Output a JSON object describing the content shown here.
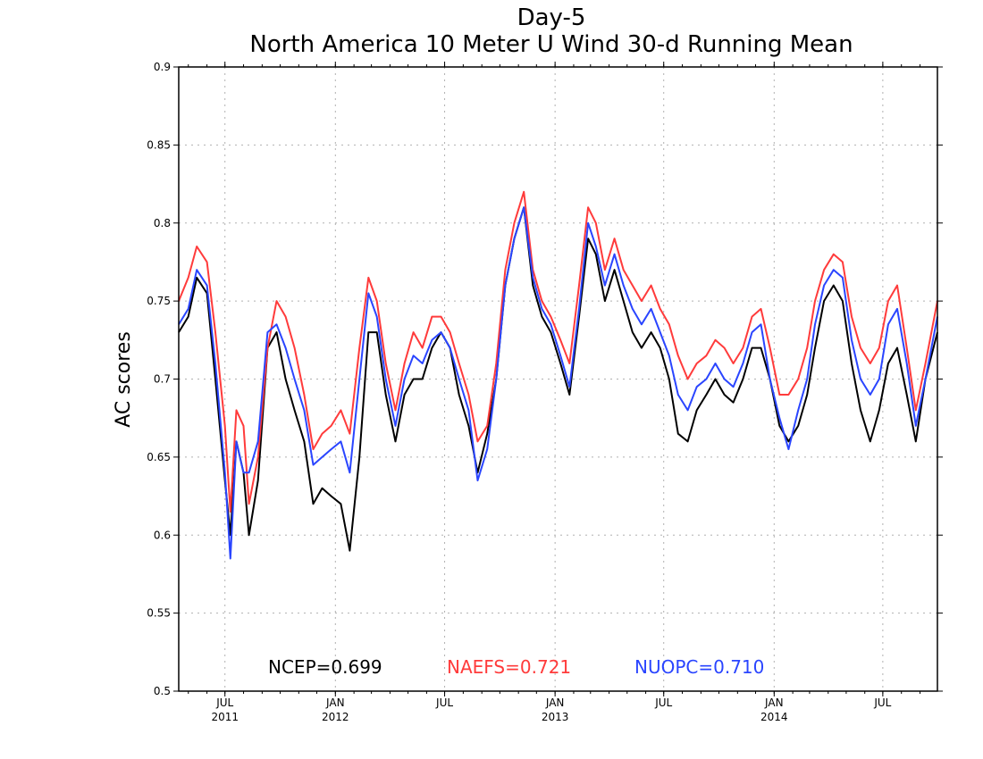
{
  "chart_data": {
    "type": "line",
    "title": "Day-5",
    "subtitle": "North America 10 Meter U Wind 30-d Running Mean",
    "ylabel": "AC scores",
    "xlabel": "",
    "ylim": [
      0.5,
      0.9
    ],
    "yticks": [
      0.5,
      0.55,
      0.6,
      0.65,
      0.7,
      0.75,
      0.8,
      0.85,
      0.9
    ],
    "ytick_labels": [
      "0.5",
      "0.55",
      "0.6",
      "0.65",
      "0.7",
      "0.75",
      "0.8",
      "0.85",
      "0.9"
    ],
    "xlim": [
      "2011-04-15",
      "2014-09-30"
    ],
    "xticks": [
      {
        "date": "2011-07-01",
        "label": "JUL",
        "year": "2011"
      },
      {
        "date": "2012-01-01",
        "label": "JAN",
        "year": "2012"
      },
      {
        "date": "2012-07-01",
        "label": "JUL",
        "year": ""
      },
      {
        "date": "2013-01-01",
        "label": "JAN",
        "year": "2013"
      },
      {
        "date": "2013-07-01",
        "label": "JUL",
        "year": ""
      },
      {
        "date": "2014-01-01",
        "label": "JAN",
        "year": "2014"
      },
      {
        "date": "2014-07-01",
        "label": "JUL",
        "year": ""
      }
    ],
    "grid": true,
    "legend_placement": "bottom",
    "series": [
      {
        "name": "NCEP",
        "legend_label": "NCEP=0.699",
        "color": "#000000",
        "points": [
          [
            "2011-04-15",
            0.73
          ],
          [
            "2011-05-01",
            0.74
          ],
          [
            "2011-05-15",
            0.765
          ],
          [
            "2011-06-01",
            0.755
          ],
          [
            "2011-06-15",
            0.7
          ],
          [
            "2011-07-01",
            0.635
          ],
          [
            "2011-07-10",
            0.6
          ],
          [
            "2011-07-20",
            0.66
          ],
          [
            "2011-08-01",
            0.64
          ],
          [
            "2011-08-10",
            0.6
          ],
          [
            "2011-08-25",
            0.635
          ],
          [
            "2011-09-10",
            0.72
          ],
          [
            "2011-09-25",
            0.73
          ],
          [
            "2011-10-10",
            0.7
          ],
          [
            "2011-10-25",
            0.68
          ],
          [
            "2011-11-10",
            0.66
          ],
          [
            "2011-11-25",
            0.62
          ],
          [
            "2011-12-10",
            0.63
          ],
          [
            "2011-12-25",
            0.625
          ],
          [
            "2012-01-10",
            0.62
          ],
          [
            "2012-01-25",
            0.59
          ],
          [
            "2012-02-10",
            0.65
          ],
          [
            "2012-02-25",
            0.73
          ],
          [
            "2012-03-10",
            0.73
          ],
          [
            "2012-03-25",
            0.69
          ],
          [
            "2012-04-10",
            0.66
          ],
          [
            "2012-04-25",
            0.69
          ],
          [
            "2012-05-10",
            0.7
          ],
          [
            "2012-05-25",
            0.7
          ],
          [
            "2012-06-10",
            0.72
          ],
          [
            "2012-06-25",
            0.73
          ],
          [
            "2012-07-10",
            0.72
          ],
          [
            "2012-07-25",
            0.69
          ],
          [
            "2012-08-10",
            0.67
          ],
          [
            "2012-08-25",
            0.64
          ],
          [
            "2012-09-10",
            0.665
          ],
          [
            "2012-09-25",
            0.7
          ],
          [
            "2012-10-10",
            0.76
          ],
          [
            "2012-10-25",
            0.79
          ],
          [
            "2012-11-10",
            0.81
          ],
          [
            "2012-11-25",
            0.76
          ],
          [
            "2012-12-10",
            0.74
          ],
          [
            "2012-12-25",
            0.73
          ],
          [
            "2013-01-10",
            0.71
          ],
          [
            "2013-01-25",
            0.69
          ],
          [
            "2013-02-10",
            0.74
          ],
          [
            "2013-02-25",
            0.79
          ],
          [
            "2013-03-10",
            0.78
          ],
          [
            "2013-03-25",
            0.75
          ],
          [
            "2013-04-10",
            0.77
          ],
          [
            "2013-04-25",
            0.75
          ],
          [
            "2013-05-10",
            0.73
          ],
          [
            "2013-05-25",
            0.72
          ],
          [
            "2013-06-10",
            0.73
          ],
          [
            "2013-06-25",
            0.72
          ],
          [
            "2013-07-10",
            0.7
          ],
          [
            "2013-07-25",
            0.665
          ],
          [
            "2013-08-10",
            0.66
          ],
          [
            "2013-08-25",
            0.68
          ],
          [
            "2013-09-10",
            0.69
          ],
          [
            "2013-09-25",
            0.7
          ],
          [
            "2013-10-10",
            0.69
          ],
          [
            "2013-10-25",
            0.685
          ],
          [
            "2013-11-10",
            0.7
          ],
          [
            "2013-11-25",
            0.72
          ],
          [
            "2013-12-10",
            0.72
          ],
          [
            "2013-12-25",
            0.7
          ],
          [
            "2014-01-10",
            0.67
          ],
          [
            "2014-01-25",
            0.66
          ],
          [
            "2014-02-10",
            0.67
          ],
          [
            "2014-02-25",
            0.69
          ],
          [
            "2014-03-10",
            0.72
          ],
          [
            "2014-03-25",
            0.75
          ],
          [
            "2014-04-10",
            0.76
          ],
          [
            "2014-04-25",
            0.75
          ],
          [
            "2014-05-10",
            0.71
          ],
          [
            "2014-05-25",
            0.68
          ],
          [
            "2014-06-10",
            0.66
          ],
          [
            "2014-06-25",
            0.68
          ],
          [
            "2014-07-10",
            0.71
          ],
          [
            "2014-07-25",
            0.72
          ],
          [
            "2014-08-10",
            0.69
          ],
          [
            "2014-08-25",
            0.66
          ],
          [
            "2014-09-10",
            0.7
          ],
          [
            "2014-09-30",
            0.73
          ]
        ]
      },
      {
        "name": "NAEFS",
        "legend_label": "NAEFS=0.721",
        "color": "#ff3b3b",
        "points": [
          [
            "2011-04-15",
            0.75
          ],
          [
            "2011-05-01",
            0.765
          ],
          [
            "2011-05-15",
            0.785
          ],
          [
            "2011-06-01",
            0.775
          ],
          [
            "2011-06-15",
            0.73
          ],
          [
            "2011-07-01",
            0.67
          ],
          [
            "2011-07-10",
            0.615
          ],
          [
            "2011-07-20",
            0.68
          ],
          [
            "2011-08-01",
            0.67
          ],
          [
            "2011-08-10",
            0.62
          ],
          [
            "2011-08-25",
            0.65
          ],
          [
            "2011-09-10",
            0.72
          ],
          [
            "2011-09-25",
            0.75
          ],
          [
            "2011-10-10",
            0.74
          ],
          [
            "2011-10-25",
            0.72
          ],
          [
            "2011-11-10",
            0.69
          ],
          [
            "2011-11-25",
            0.655
          ],
          [
            "2011-12-10",
            0.665
          ],
          [
            "2011-12-25",
            0.67
          ],
          [
            "2012-01-10",
            0.68
          ],
          [
            "2012-01-25",
            0.665
          ],
          [
            "2012-02-10",
            0.72
          ],
          [
            "2012-02-25",
            0.765
          ],
          [
            "2012-03-10",
            0.75
          ],
          [
            "2012-03-25",
            0.71
          ],
          [
            "2012-04-10",
            0.68
          ],
          [
            "2012-04-25",
            0.71
          ],
          [
            "2012-05-10",
            0.73
          ],
          [
            "2012-05-25",
            0.72
          ],
          [
            "2012-06-10",
            0.74
          ],
          [
            "2012-06-25",
            0.74
          ],
          [
            "2012-07-10",
            0.73
          ],
          [
            "2012-07-25",
            0.71
          ],
          [
            "2012-08-10",
            0.69
          ],
          [
            "2012-08-25",
            0.66
          ],
          [
            "2012-09-10",
            0.67
          ],
          [
            "2012-09-25",
            0.71
          ],
          [
            "2012-10-10",
            0.77
          ],
          [
            "2012-10-25",
            0.8
          ],
          [
            "2012-11-10",
            0.82
          ],
          [
            "2012-11-25",
            0.77
          ],
          [
            "2012-12-10",
            0.75
          ],
          [
            "2012-12-25",
            0.74
          ],
          [
            "2013-01-10",
            0.725
          ],
          [
            "2013-01-25",
            0.71
          ],
          [
            "2013-02-10",
            0.76
          ],
          [
            "2013-02-25",
            0.81
          ],
          [
            "2013-03-10",
            0.8
          ],
          [
            "2013-03-25",
            0.77
          ],
          [
            "2013-04-10",
            0.79
          ],
          [
            "2013-04-25",
            0.77
          ],
          [
            "2013-05-10",
            0.76
          ],
          [
            "2013-05-25",
            0.75
          ],
          [
            "2013-06-10",
            0.76
          ],
          [
            "2013-06-25",
            0.745
          ],
          [
            "2013-07-10",
            0.735
          ],
          [
            "2013-07-25",
            0.715
          ],
          [
            "2013-08-10",
            0.7
          ],
          [
            "2013-08-25",
            0.71
          ],
          [
            "2013-09-10",
            0.715
          ],
          [
            "2013-09-25",
            0.725
          ],
          [
            "2013-10-10",
            0.72
          ],
          [
            "2013-10-25",
            0.71
          ],
          [
            "2013-11-10",
            0.72
          ],
          [
            "2013-11-25",
            0.74
          ],
          [
            "2013-12-10",
            0.745
          ],
          [
            "2013-12-25",
            0.72
          ],
          [
            "2014-01-10",
            0.69
          ],
          [
            "2014-01-25",
            0.69
          ],
          [
            "2014-02-10",
            0.7
          ],
          [
            "2014-02-25",
            0.72
          ],
          [
            "2014-03-10",
            0.75
          ],
          [
            "2014-03-25",
            0.77
          ],
          [
            "2014-04-10",
            0.78
          ],
          [
            "2014-04-25",
            0.775
          ],
          [
            "2014-05-10",
            0.74
          ],
          [
            "2014-05-25",
            0.72
          ],
          [
            "2014-06-10",
            0.71
          ],
          [
            "2014-06-25",
            0.72
          ],
          [
            "2014-07-10",
            0.75
          ],
          [
            "2014-07-25",
            0.76
          ],
          [
            "2014-08-10",
            0.72
          ],
          [
            "2014-08-25",
            0.68
          ],
          [
            "2014-09-10",
            0.71
          ],
          [
            "2014-09-30",
            0.75
          ]
        ]
      },
      {
        "name": "NUOPC",
        "legend_label": "NUOPC=0.710",
        "color": "#2a45ff",
        "points": [
          [
            "2011-04-15",
            0.735
          ],
          [
            "2011-05-01",
            0.745
          ],
          [
            "2011-05-15",
            0.77
          ],
          [
            "2011-06-01",
            0.76
          ],
          [
            "2011-06-15",
            0.71
          ],
          [
            "2011-07-01",
            0.64
          ],
          [
            "2011-07-10",
            0.585
          ],
          [
            "2011-07-20",
            0.66
          ],
          [
            "2011-08-01",
            0.64
          ],
          [
            "2011-08-10",
            0.64
          ],
          [
            "2011-08-25",
            0.66
          ],
          [
            "2011-09-10",
            0.73
          ],
          [
            "2011-09-25",
            0.735
          ],
          [
            "2011-10-10",
            0.72
          ],
          [
            "2011-10-25",
            0.7
          ],
          [
            "2011-11-10",
            0.68
          ],
          [
            "2011-11-25",
            0.645
          ],
          [
            "2011-12-10",
            0.65
          ],
          [
            "2011-12-25",
            0.655
          ],
          [
            "2012-01-10",
            0.66
          ],
          [
            "2012-01-25",
            0.64
          ],
          [
            "2012-02-10",
            0.7
          ],
          [
            "2012-02-25",
            0.755
          ],
          [
            "2012-03-10",
            0.74
          ],
          [
            "2012-03-25",
            0.7
          ],
          [
            "2012-04-10",
            0.67
          ],
          [
            "2012-04-25",
            0.7
          ],
          [
            "2012-05-10",
            0.715
          ],
          [
            "2012-05-25",
            0.71
          ],
          [
            "2012-06-10",
            0.725
          ],
          [
            "2012-06-25",
            0.73
          ],
          [
            "2012-07-10",
            0.72
          ],
          [
            "2012-07-25",
            0.7
          ],
          [
            "2012-08-10",
            0.68
          ],
          [
            "2012-08-25",
            0.635
          ],
          [
            "2012-09-10",
            0.655
          ],
          [
            "2012-09-25",
            0.7
          ],
          [
            "2012-10-10",
            0.76
          ],
          [
            "2012-10-25",
            0.79
          ],
          [
            "2012-11-10",
            0.81
          ],
          [
            "2012-11-25",
            0.765
          ],
          [
            "2012-12-10",
            0.745
          ],
          [
            "2012-12-25",
            0.735
          ],
          [
            "2013-01-10",
            0.715
          ],
          [
            "2013-01-25",
            0.695
          ],
          [
            "2013-02-10",
            0.745
          ],
          [
            "2013-02-25",
            0.8
          ],
          [
            "2013-03-10",
            0.785
          ],
          [
            "2013-03-25",
            0.76
          ],
          [
            "2013-04-10",
            0.78
          ],
          [
            "2013-04-25",
            0.76
          ],
          [
            "2013-05-10",
            0.745
          ],
          [
            "2013-05-25",
            0.735
          ],
          [
            "2013-06-10",
            0.745
          ],
          [
            "2013-06-25",
            0.73
          ],
          [
            "2013-07-10",
            0.715
          ],
          [
            "2013-07-25",
            0.69
          ],
          [
            "2013-08-10",
            0.68
          ],
          [
            "2013-08-25",
            0.695
          ],
          [
            "2013-09-10",
            0.7
          ],
          [
            "2013-09-25",
            0.71
          ],
          [
            "2013-10-10",
            0.7
          ],
          [
            "2013-10-25",
            0.695
          ],
          [
            "2013-11-10",
            0.71
          ],
          [
            "2013-11-25",
            0.73
          ],
          [
            "2013-12-10",
            0.735
          ],
          [
            "2013-12-25",
            0.7
          ],
          [
            "2014-01-10",
            0.675
          ],
          [
            "2014-01-25",
            0.655
          ],
          [
            "2014-02-10",
            0.68
          ],
          [
            "2014-02-25",
            0.7
          ],
          [
            "2014-03-10",
            0.735
          ],
          [
            "2014-03-25",
            0.76
          ],
          [
            "2014-04-10",
            0.77
          ],
          [
            "2014-04-25",
            0.765
          ],
          [
            "2014-05-10",
            0.725
          ],
          [
            "2014-05-25",
            0.7
          ],
          [
            "2014-06-10",
            0.69
          ],
          [
            "2014-06-25",
            0.7
          ],
          [
            "2014-07-10",
            0.735
          ],
          [
            "2014-07-25",
            0.745
          ],
          [
            "2014-08-10",
            0.71
          ],
          [
            "2014-08-25",
            0.67
          ],
          [
            "2014-09-10",
            0.7
          ],
          [
            "2014-09-30",
            0.74
          ]
        ]
      }
    ]
  }
}
